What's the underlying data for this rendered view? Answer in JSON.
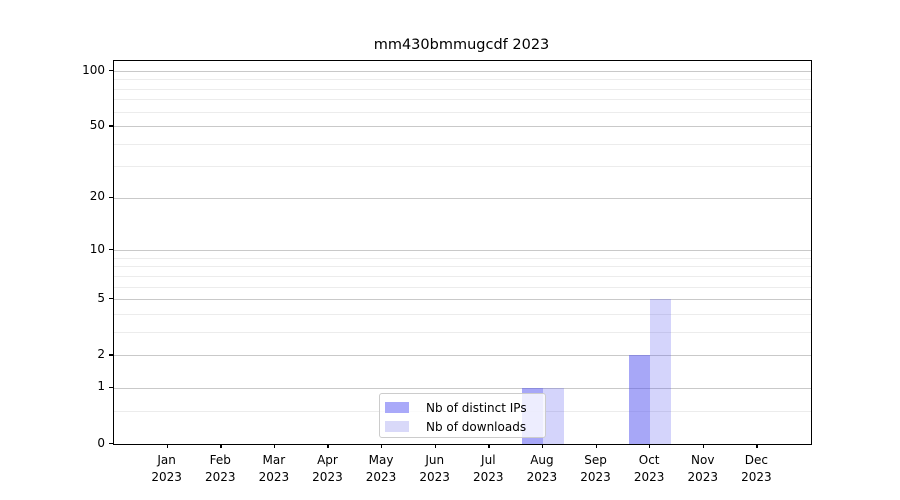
{
  "chart_data": {
    "type": "bar",
    "title": "mm430bmmugcdf 2023",
    "categories": [
      "Jan",
      "Feb",
      "Mar",
      "Apr",
      "May",
      "Jun",
      "Jul",
      "Aug",
      "Sep",
      "Oct",
      "Nov",
      "Dec"
    ],
    "category_year": "2023",
    "series": [
      {
        "name": "Nb of distinct IPs",
        "color": "#a9a9f9",
        "fill": "rgba(80,80,240,0.50)",
        "values": [
          0,
          0,
          0,
          0,
          0,
          0,
          0,
          1,
          0,
          2,
          0,
          0
        ]
      },
      {
        "name": "Nb of downloads",
        "color": "#d9d9f9",
        "fill": "rgba(80,80,240,0.245)",
        "values": [
          0,
          0,
          0,
          0,
          0,
          0,
          0,
          1,
          0,
          5,
          0,
          0
        ]
      }
    ],
    "xlabel": "",
    "ylabel": "",
    "yscale": "log1p",
    "ylim": [
      0,
      113
    ],
    "yticks": [
      0,
      1,
      2,
      5,
      10,
      20,
      50,
      100
    ],
    "yticks_minor": [
      0.5,
      3,
      4,
      6,
      7,
      8,
      9,
      30,
      40,
      60,
      70,
      80,
      90
    ],
    "grid": "on",
    "legend_position": "inside lower-center"
  }
}
